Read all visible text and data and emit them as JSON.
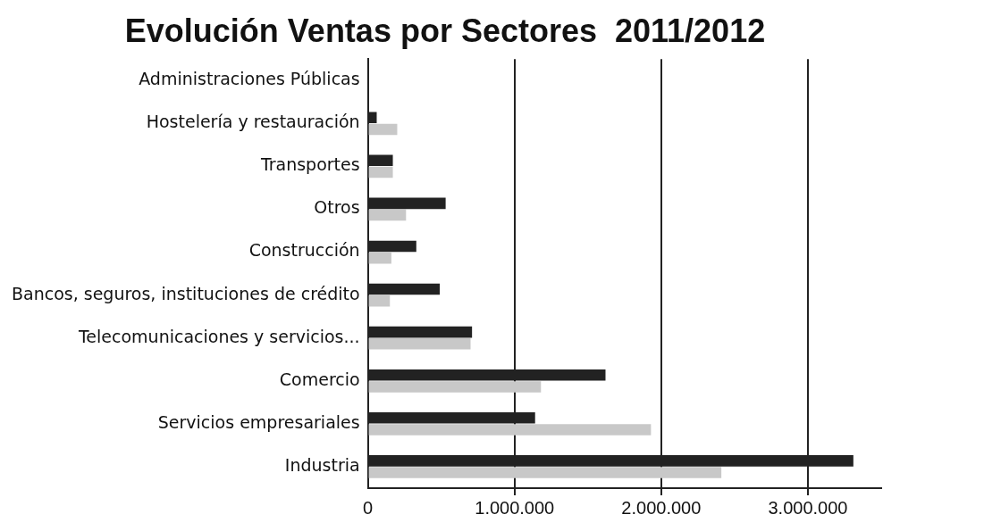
{
  "chart_data": {
    "type": "bar",
    "orientation": "horizontal",
    "title": "Evolución Ventas por Sectores  2011/2012",
    "categories": [
      "Administraciones Públicas",
      "Hostelería y restauración",
      "Transportes",
      "Otros",
      "Construcción",
      "Bancos, seguros, instituciones de crédito",
      "Telecomunicaciones y servicios...",
      "Comercio",
      "Servicios empresariales",
      "Industria"
    ],
    "series": [
      {
        "color": "#222222",
        "values": [
          null,
          60000.0,
          170000.0,
          530000.0,
          330000.0,
          490000.0,
          710000.0,
          1620000.0,
          1140000.0,
          3310000.0
        ]
      },
      {
        "color": "#c8c8c8",
        "values": [
          null,
          200000.0,
          170000.0,
          260000.0,
          160000.0,
          150000.0,
          700000.0,
          1180000.0,
          1930000.0,
          2410000.0
        ]
      }
    ],
    "xlim": [
      0,
      3500000
    ],
    "xticks": [
      0,
      {
        "value": 1000000,
        "label": "1.000.000"
      },
      {
        "value": 2000000,
        "label": "2.000.000"
      },
      {
        "value": 3000000,
        "label": "3.000.000"
      }
    ],
    "grid": "x",
    "legend": false
  }
}
